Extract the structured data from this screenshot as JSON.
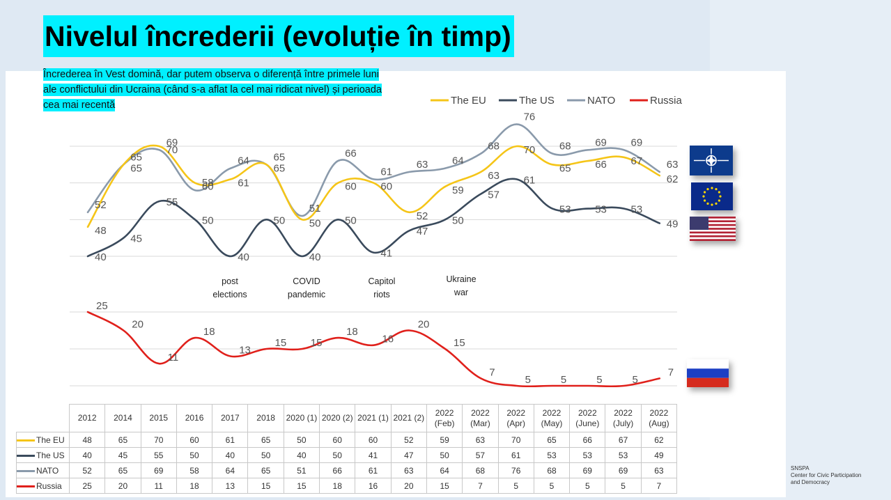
{
  "title": "Nivelul încrederii (evoluție în timp)",
  "subtitle": "Încrederea în Vest domină, dar putem observa o diferență între primele luni ale conflictului din Ucraina (când s-a aflat la cel mai ridicat nivel) și perioada cea mai recentă",
  "footer": {
    "org_short": "SNSPA",
    "org_line1": "Center for Civic Participation",
    "org_line2": "and Democracy"
  },
  "flags": [
    "nato-flag-icon",
    "eu-flag-icon",
    "us-flag-icon",
    "russia-flag-icon"
  ],
  "chart_data": {
    "type": "line",
    "categories": [
      "2012",
      "2014",
      "2015",
      "2016",
      "2017",
      "2018",
      "2020 (1)",
      "2020 (2)",
      "2021 (1)",
      "2021 (2)",
      "2022 (Feb)",
      "2022 (Mar)",
      "2022 (Apr)",
      "2022 (May)",
      "2022 (June)",
      "2022 (July)",
      "2022 (Aug)"
    ],
    "series": [
      {
        "name": "The EU",
        "color": "#f5c518",
        "values": [
          48,
          65,
          70,
          60,
          61,
          65,
          50,
          60,
          60,
          52,
          59,
          63,
          70,
          65,
          66,
          67,
          62
        ]
      },
      {
        "name": "The US",
        "color": "#3a4a5c",
        "values": [
          40,
          45,
          55,
          50,
          40,
          50,
          40,
          50,
          41,
          47,
          50,
          57,
          61,
          53,
          53,
          53,
          49
        ]
      },
      {
        "name": "NATO",
        "color": "#8a9aab",
        "values": [
          52,
          65,
          69,
          58,
          64,
          65,
          51,
          66,
          61,
          63,
          64,
          68,
          76,
          68,
          69,
          69,
          63
        ]
      },
      {
        "name": "Russia",
        "color": "#e0201b",
        "values": [
          25,
          20,
          11,
          18,
          13,
          15,
          15,
          18,
          16,
          20,
          15,
          7,
          5,
          5,
          5,
          5,
          7
        ]
      }
    ],
    "table_values": {
      "The EU": [
        "48",
        "65",
        "70",
        "60",
        "61",
        "65",
        "50",
        "60",
        "60",
        "52",
        "59",
        "63",
        "70",
        "65",
        "66",
        "67",
        "62"
      ],
      "The US": [
        "40",
        "45",
        "55",
        "50",
        "40",
        "50",
        "40",
        "50",
        "41",
        "47",
        "50",
        "57",
        "61",
        "53",
        "53",
        "53",
        "49"
      ],
      "NATO": [
        "52",
        "65",
        "69",
        "58",
        "64",
        "65",
        "51",
        "66",
        "61",
        "63",
        "64",
        "68",
        "76",
        "68",
        "69",
        "69",
        "63"
      ],
      "Russia": [
        "25",
        "20",
        "11",
        "18",
        "13",
        "15",
        "15",
        "18",
        "16",
        "20",
        "15",
        "7",
        "5",
        "5",
        "5",
        "5",
        "7"
      ]
    },
    "annotations": [
      {
        "text_line1": "post",
        "text_line2": "elections"
      },
      {
        "text_line1": "COVID",
        "text_line2": "pandemic"
      },
      {
        "text_line1": "Capitol",
        "text_line2": "riots"
      },
      {
        "text_line1": "Ukraine",
        "text_line2": "war"
      }
    ],
    "legend_position": "top-right",
    "grid": true
  }
}
